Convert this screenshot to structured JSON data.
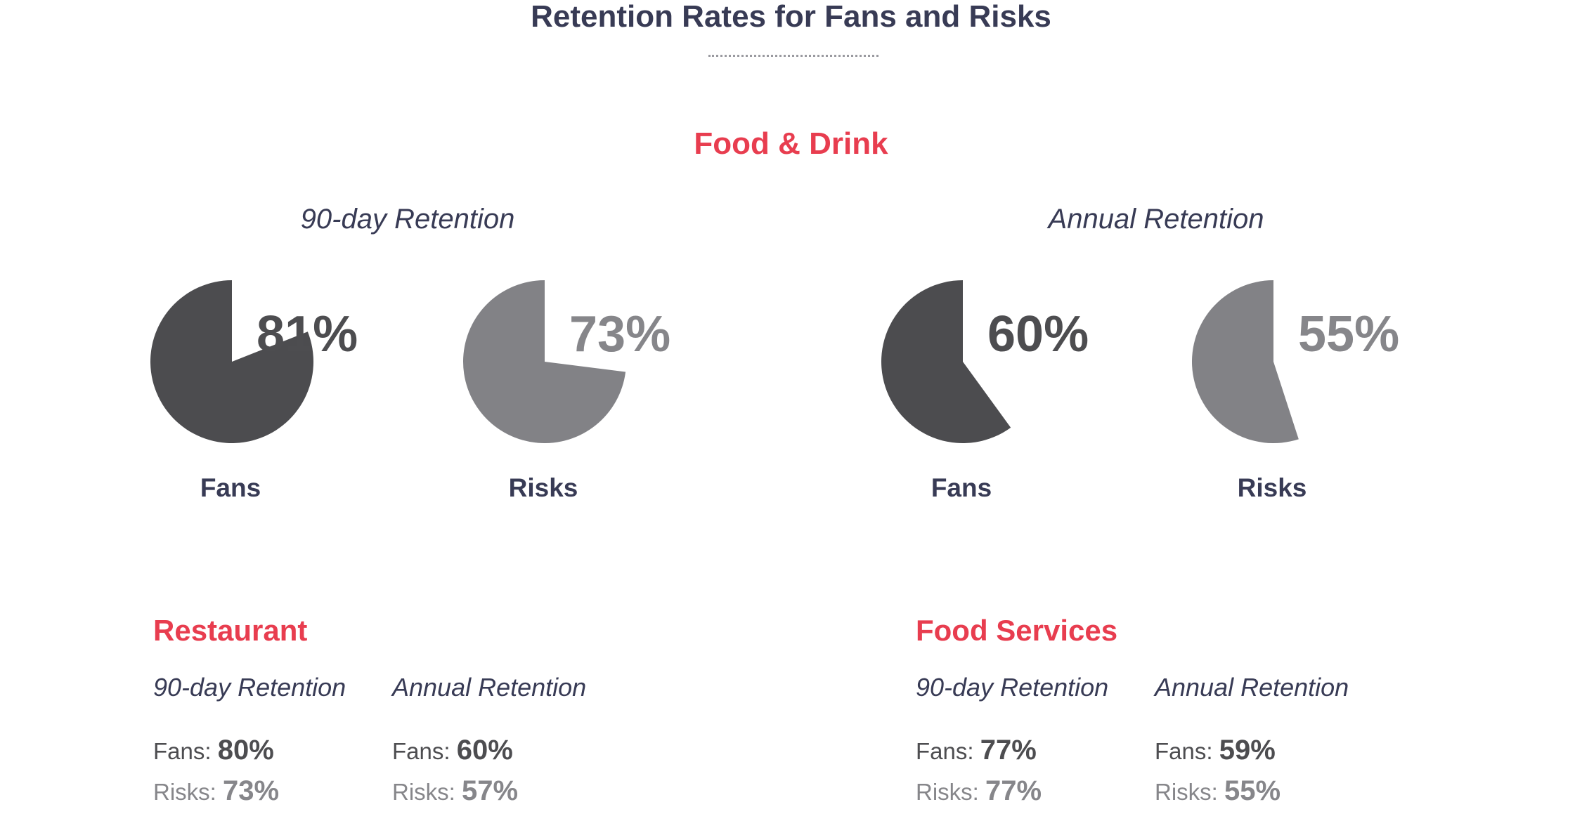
{
  "header": {
    "title": "Retention Rates for Fans and Risks"
  },
  "section": {
    "title": "Food & Drink"
  },
  "chart_data": [
    {
      "type": "pie",
      "group": "90-day Retention",
      "name": "Fans",
      "value": 81,
      "label": "81%",
      "color": "#4c4c4f"
    },
    {
      "type": "pie",
      "group": "90-day Retention",
      "name": "Risks",
      "value": 73,
      "label": "73%",
      "color": "#828286"
    },
    {
      "type": "pie",
      "group": "Annual Retention",
      "name": "Fans",
      "value": 60,
      "label": "60%",
      "color": "#4c4c4f"
    },
    {
      "type": "pie",
      "group": "Annual Retention",
      "name": "Risks",
      "value": 55,
      "label": "55%",
      "color": "#828286"
    }
  ],
  "charts": {
    "ninety_day_title": "90-day Retention",
    "annual_title": "Annual Retention"
  },
  "groups": [
    {
      "title": "Restaurant",
      "ninety_label": "90-day Retention",
      "annual_label": "Annual Retention",
      "ninety_fans_label": "Fans:",
      "ninety_fans_value": "80%",
      "ninety_risks_label": "Risks:",
      "ninety_risks_value": "73%",
      "annual_fans_label": "Fans:",
      "annual_fans_value": "60%",
      "annual_risks_label": "Risks:",
      "annual_risks_value": "57%"
    },
    {
      "title": "Food Services",
      "ninety_label": "90-day Retention",
      "annual_label": "Annual Retention",
      "ninety_fans_label": "Fans:",
      "ninety_fans_value": "77%",
      "ninety_risks_label": "Risks:",
      "ninety_risks_value": "77%",
      "annual_fans_label": "Fans:",
      "annual_fans_value": "59%",
      "annual_risks_label": "Risks:",
      "annual_risks_value": "55%"
    }
  ]
}
